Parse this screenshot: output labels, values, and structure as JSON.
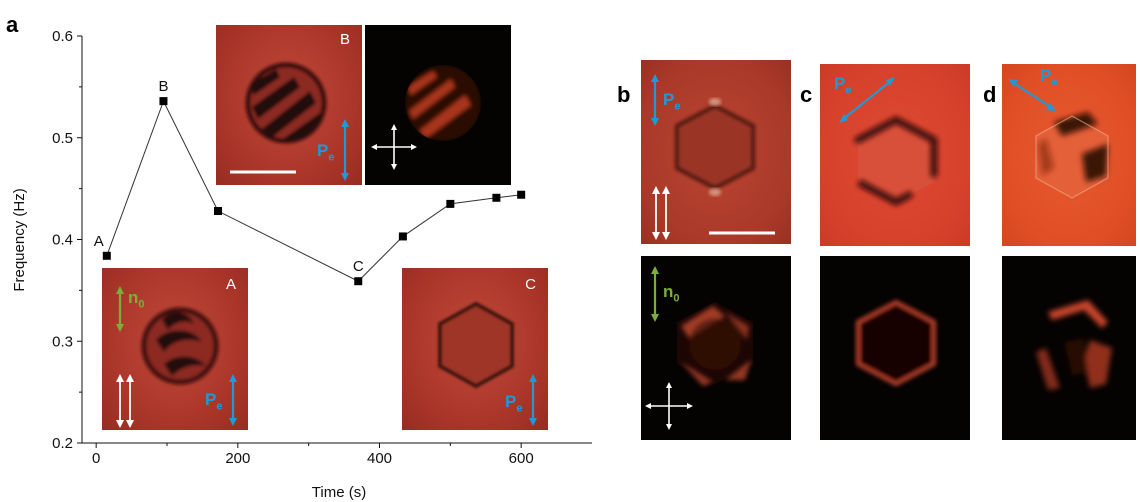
{
  "figure": {
    "panel_labels": {
      "a": "a",
      "b": "b",
      "c": "c",
      "d": "d"
    },
    "inset_labels": {
      "A": "A",
      "B": "B",
      "C": "C"
    },
    "vector_labels": {
      "polarization_main": "P",
      "polarization_sub": "e",
      "director_main": "n",
      "director_sub": "0"
    },
    "colors": {
      "polarization_arrow": "#1e9ad6",
      "director_arrow": "#7cae3a",
      "bright_field": "#b43a2c",
      "dark_field": "#050202",
      "line": "#333333"
    }
  },
  "chart_data": {
    "type": "line",
    "xlabel": "Time (s)",
    "ylabel": "Frequency (Hz)",
    "xlim": [
      -20,
      700
    ],
    "ylim": [
      0.2,
      0.6
    ],
    "xticks": [
      0,
      200,
      400,
      600
    ],
    "yticks": [
      0.2,
      0.3,
      0.4,
      0.5,
      0.6
    ],
    "grid": false,
    "series": [
      {
        "x": [
          15,
          95,
          172,
          370,
          433,
          500,
          565,
          600
        ],
        "y": [
          0.384,
          0.536,
          0.428,
          0.359,
          0.403,
          0.435,
          0.441,
          0.444
        ],
        "point_labels": [
          "A",
          "B",
          "",
          "C",
          "",
          "",
          "",
          ""
        ]
      }
    ]
  }
}
